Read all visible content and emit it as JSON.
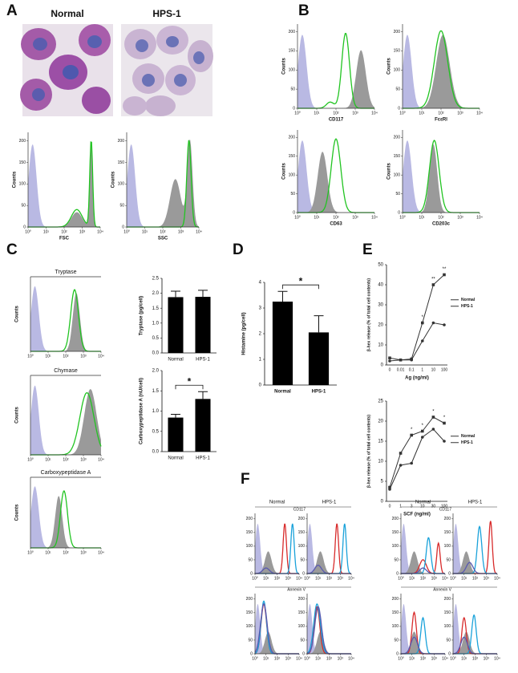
{
  "figure": {
    "panel_letters": [
      "A",
      "B",
      "C",
      "D",
      "E",
      "F"
    ]
  },
  "panel_a": {
    "group_titles": [
      "Normal",
      "HPS-1"
    ]
  },
  "flow_axes": {
    "y_label": "Counts",
    "ylim": [
      0,
      220
    ],
    "yticks": [
      0,
      50,
      100,
      150,
      200
    ],
    "xlim": [
      1,
      10000
    ],
    "log_x": true,
    "xticks": [
      {
        "value": 1,
        "label": "10⁰"
      },
      {
        "value": 10,
        "label": "10¹"
      },
      {
        "value": 100,
        "label": "10²"
      },
      {
        "value": 1000,
        "label": "10³"
      },
      {
        "value": 10000,
        "label": "10⁴"
      }
    ]
  },
  "flow_labels": {
    "fsc": "FSC",
    "ssc": "SSC",
    "cd117": "CD117",
    "fceri": "FcεRI",
    "cd63": "CD63",
    "cd203c": "CD203c",
    "tryptase": "Tryptase",
    "chymase": "Chymase",
    "cpa": "Carboxypeptidase A"
  },
  "panel_f": {
    "group_titles": [
      "Normal",
      "HPS-1",
      "Normal",
      "HPS-1"
    ],
    "row_labels": [
      "CD117",
      "Annexin V"
    ]
  },
  "chart_data": [
    {
      "type": "bar",
      "y_label": "Tryptase (pg/cell)",
      "categories": [
        "Normal",
        "HPS-1"
      ],
      "values": [
        1.87,
        1.88
      ],
      "errors": [
        0.2,
        0.22
      ],
      "color": "#000000",
      "ylim": [
        0,
        2.5
      ],
      "yticks": [
        {
          "value": 0,
          "label": "0.0"
        },
        0.5,
        {
          "value": 1,
          "label": "1.0"
        },
        1.5,
        {
          "value": 2,
          "label": "2.0"
        },
        2.5
      ]
    },
    {
      "type": "bar",
      "y_label": "Carboxypeptidase A (nU/cell)",
      "categories": [
        "Normal",
        "HPS-1"
      ],
      "values": [
        0.84,
        1.3
      ],
      "errors": [
        0.08,
        0.18
      ],
      "color": "#000000",
      "ylim": [
        0,
        2
      ],
      "yticks": [
        {
          "value": 0,
          "label": "0.0"
        },
        0.5,
        {
          "value": 1,
          "label": "1.0"
        },
        1.5,
        {
          "value": 2,
          "label": "2.0"
        }
      ],
      "annotation": "*"
    },
    {
      "type": "bar",
      "y_label": "Histamine (pg/cell)",
      "categories": [
        "Normal",
        "HPS-1"
      ],
      "values": [
        3.25,
        2.05
      ],
      "errors": [
        0.4,
        0.65
      ],
      "color": "#000000",
      "ylim": [
        0,
        4
      ],
      "yticks": [
        0,
        1,
        2,
        3,
        4
      ],
      "annotation": "*"
    },
    {
      "type": "line",
      "y_label": "β-hex release (% of total cell contents)",
      "x_label": "Ag (ng/ml)",
      "categories": [
        "0",
        "0.01",
        "0.1",
        "1",
        "10",
        "100"
      ],
      "ylim": [
        0,
        50
      ],
      "yticks": [
        0,
        10,
        20,
        30,
        40,
        50
      ],
      "series": [
        {
          "name": "Normal",
          "color": "#333333",
          "values": [
            2,
            2.5,
            2.5,
            12,
            21,
            20
          ]
        },
        {
          "name": "HPS-1",
          "color": "#333333",
          "values": [
            3.5,
            2.5,
            3,
            21,
            40,
            45
          ]
        }
      ],
      "annotations": [
        "*",
        "**",
        "**"
      ]
    },
    {
      "type": "line",
      "y_label": "β-hex release (% of total cell contents)",
      "x_label": "SCF (ng/ml)",
      "categories": [
        "0",
        "1",
        "3",
        "10",
        "30",
        "100"
      ],
      "ylim": [
        0,
        25
      ],
      "yticks": [
        0,
        5,
        10,
        15,
        20,
        25
      ],
      "series": [
        {
          "name": "Normal",
          "color": "#333333",
          "values": [
            3,
            9,
            9.5,
            16,
            18,
            15
          ]
        },
        {
          "name": "HPS-1",
          "color": "#333333",
          "values": [
            3.5,
            12,
            16.5,
            17.5,
            21,
            19.5
          ]
        }
      ],
      "annotations": [
        "*",
        "*",
        "*",
        "*"
      ]
    }
  ]
}
